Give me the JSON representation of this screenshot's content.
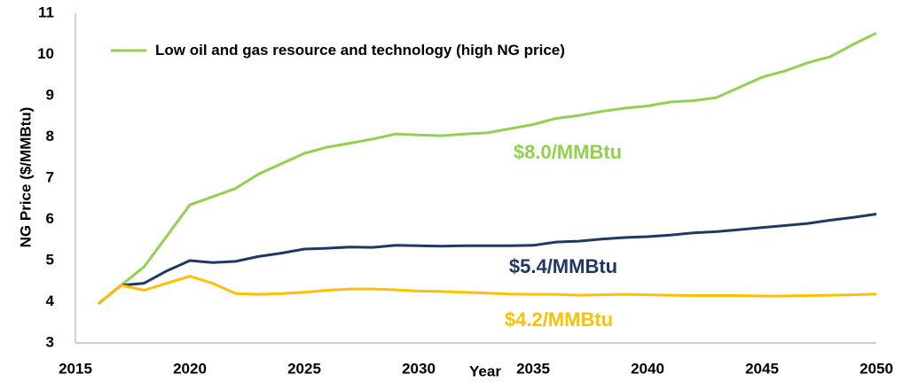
{
  "chart_data": {
    "type": "line",
    "y_label": "NG Price ($/MMBtu)",
    "x_label": "Year",
    "x": [
      2016,
      2017,
      2018,
      2019,
      2020,
      2021,
      2022,
      2023,
      2024,
      2025,
      2026,
      2027,
      2028,
      2029,
      2030,
      2031,
      2032,
      2033,
      2034,
      2035,
      2036,
      2037,
      2038,
      2039,
      2040,
      2041,
      2042,
      2043,
      2044,
      2045,
      2046,
      2047,
      2048,
      2049,
      2050
    ],
    "series": [
      {
        "name": "Low oil and gas resource and technology (high NG price)",
        "color": "#92d050",
        "values": [
          3.95,
          4.4,
          4.85,
          5.6,
          6.35,
          6.55,
          6.75,
          7.1,
          7.35,
          7.6,
          7.75,
          7.85,
          7.95,
          8.07,
          8.05,
          8.03,
          8.07,
          8.1,
          8.2,
          8.3,
          8.45,
          8.52,
          8.62,
          8.7,
          8.75,
          8.85,
          8.88,
          8.95,
          9.2,
          9.45,
          9.6,
          9.8,
          9.95,
          10.25,
          10.52
        ]
      },
      {
        "color": "#1f3864",
        "values": [
          3.95,
          4.4,
          4.45,
          4.75,
          5.0,
          4.95,
          4.98,
          5.1,
          5.18,
          5.28,
          5.3,
          5.33,
          5.32,
          5.37,
          5.36,
          5.35,
          5.36,
          5.36,
          5.36,
          5.37,
          5.45,
          5.47,
          5.52,
          5.56,
          5.58,
          5.62,
          5.67,
          5.7,
          5.75,
          5.8,
          5.85,
          5.9,
          5.98,
          6.05,
          6.13
        ]
      },
      {
        "color": "#ffc000",
        "values": [
          3.95,
          4.4,
          4.28,
          4.45,
          4.62,
          4.45,
          4.2,
          4.18,
          4.2,
          4.23,
          4.28,
          4.31,
          4.31,
          4.29,
          4.26,
          4.25,
          4.23,
          4.21,
          4.19,
          4.18,
          4.18,
          4.16,
          4.17,
          4.18,
          4.17,
          4.16,
          4.15,
          4.15,
          4.15,
          4.14,
          4.14,
          4.15,
          4.16,
          4.17,
          4.19
        ]
      }
    ],
    "annotations": [
      {
        "text": "$8.0/MMBtu",
        "color": "#92d050"
      },
      {
        "text": "$5.4/MMBtu",
        "color": "#1f3864"
      },
      {
        "text": "$4.2/MMBtu",
        "color": "#ffc000"
      }
    ],
    "xlim": [
      2015,
      2050
    ],
    "xticks": [
      2015,
      2020,
      2025,
      2030,
      2035,
      2040,
      2045,
      2050
    ],
    "ylim": [
      3,
      11
    ],
    "yticks": [
      3,
      4,
      5,
      6,
      7,
      8,
      9,
      10,
      11
    ],
    "legend": "top-left"
  }
}
